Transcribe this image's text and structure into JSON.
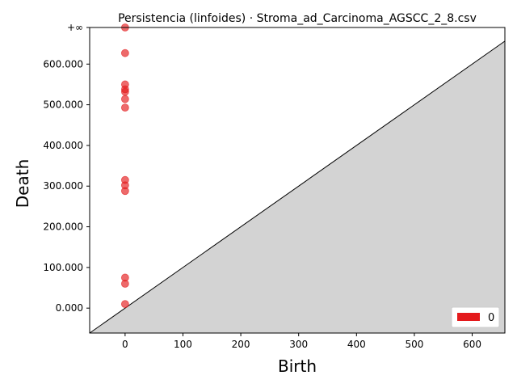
{
  "chart_data": {
    "type": "scatter",
    "title": "Persistencia (linfoides) · Stroma_ad_Carcinoma_AGSCC_2_8.csv",
    "xlabel": "Birth",
    "ylabel": "Death",
    "xlim": [
      -61.25,
      656.5
    ],
    "ylim": [
      -61.25,
      690.0
    ],
    "x_ticks": [
      0,
      100,
      200,
      300,
      400,
      500,
      600
    ],
    "x_tick_labels": [
      "0",
      "100",
      "200",
      "300",
      "400",
      "500",
      "600"
    ],
    "y_ticks": [
      0,
      100,
      200,
      300,
      400,
      500,
      600,
      690
    ],
    "y_tick_labels": [
      "0.000",
      "100.000",
      "200.000",
      "300.000",
      "400.000",
      "500.000",
      "600.000",
      "+∞"
    ],
    "infinity_line": 690,
    "diagonal": true,
    "legend": {
      "position": "bottom-right",
      "entries": [
        "0"
      ]
    },
    "series": [
      {
        "name": "0",
        "color": "#e41a1c",
        "points": [
          [
            0,
            690
          ],
          [
            0,
            627
          ],
          [
            0,
            550
          ],
          [
            0,
            538
          ],
          [
            0,
            532
          ],
          [
            0,
            514
          ],
          [
            0,
            493
          ],
          [
            0,
            315
          ],
          [
            0,
            302
          ],
          [
            0,
            288
          ],
          [
            0,
            75
          ],
          [
            0,
            60
          ],
          [
            0,
            10
          ]
        ]
      }
    ]
  }
}
